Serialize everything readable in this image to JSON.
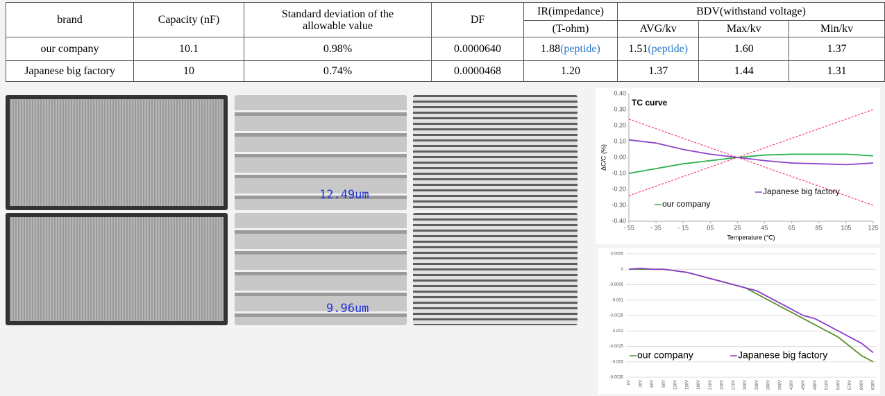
{
  "table": {
    "header": [
      "brand",
      "Capacity (nF)",
      "Standard deviation of the allowable value",
      "DF",
      "IR(impedance)",
      "BDV(withstand voltage)"
    ],
    "subheader": [
      "(T-ohm)",
      "AVG/kv",
      "Max/kv",
      "Min/kv"
    ],
    "rows": [
      [
        {
          "text": "our company"
        },
        {
          "text": "10.1"
        },
        {
          "text": "0.98%"
        },
        {
          "text": "0.0000640"
        },
        {
          "text": "1.88",
          "note": "(peptide)"
        },
        {
          "text": "1.51",
          "note": "(peptide)"
        },
        {
          "text": "1.60"
        },
        {
          "text": "1.37"
        }
      ],
      [
        {
          "text": "Japanese big factory"
        },
        {
          "text": "10"
        },
        {
          "text": "0.74%"
        },
        {
          "text": "0.0000468"
        },
        {
          "text": "1.20"
        },
        {
          "text": "1.37"
        },
        {
          "text": "1.44"
        },
        {
          "text": "1.31"
        }
      ]
    ]
  },
  "photos": {
    "sem_top": "12.49um",
    "sem_bottom": "9.96um"
  },
  "chart_data": [
    {
      "type": "line",
      "title": "TC curve",
      "x_label": "Temperature (℃)",
      "y_label": "ΔC/C (%)",
      "x": [
        -55,
        -35,
        -15,
        5,
        25,
        45,
        65,
        85,
        105,
        125
      ],
      "series": [
        {
          "name": "our company",
          "color": "#2bb04f",
          "values": [
            -0.1,
            -0.07,
            -0.04,
            -0.02,
            0,
            0.015,
            0.02,
            0.02,
            0.02,
            0.01
          ]
        },
        {
          "name": "Japanese big factory",
          "color": "#8e44c8",
          "values": [
            0.11,
            0.09,
            0.05,
            0.02,
            0,
            -0.02,
            -0.035,
            -0.04,
            -0.045,
            -0.035
          ]
        }
      ],
      "reference_lines": [
        {
          "color": "#ff3b6b",
          "x": [
            -55,
            125
          ],
          "values": [
            0.24,
            -0.3
          ]
        },
        {
          "color": "#ff3b6b",
          "x": [
            -55,
            125
          ],
          "values": [
            -0.24,
            0.3
          ]
        }
      ],
      "xlim": [
        -55,
        125
      ],
      "ylim": [
        -0.4,
        0.4
      ],
      "xticks": [
        {
          "value": -55,
          "label": "- 55"
        },
        {
          "value": -35,
          "label": "- 35"
        },
        {
          "value": -15,
          "label": "- 15"
        },
        {
          "value": 5,
          "label": "05"
        },
        25,
        45,
        65,
        85,
        105,
        125
      ],
      "yticks": [
        {
          "value": 0.4,
          "label": "0.40"
        },
        {
          "value": 0.3,
          "label": "0.30"
        },
        {
          "value": 0.2,
          "label": "0.20"
        },
        {
          "value": 0.1,
          "label": "0.10"
        },
        {
          "value": 0,
          "label": "0.00"
        },
        {
          "value": -0.1,
          "label": "-0.10"
        },
        {
          "value": -0.2,
          "label": "-0.20"
        },
        {
          "value": -0.3,
          "label": "-0.30"
        },
        {
          "value": -0.4,
          "label": "-0.40"
        }
      ],
      "grid": false
    },
    {
      "type": "line",
      "categories": [
        "0V",
        "30V",
        "60V",
        "90V",
        "120V",
        "150V",
        "180V",
        "210V",
        "240V",
        "270V",
        "300V",
        "330V",
        "360V",
        "390V",
        "420V",
        "450V",
        "480V",
        "510V",
        "540V",
        "570V",
        "600V",
        "630V"
      ],
      "series": [
        {
          "name": "our company",
          "color": "#5b8f2b",
          "values": [
            0,
            0,
            0,
            0,
            -5e-05,
            -0.0001,
            -0.0002,
            -0.0003,
            -0.0004,
            -0.0005,
            -0.0006,
            -0.0008,
            -0.001,
            -0.0012,
            -0.0014,
            -0.0016,
            -0.0018,
            -0.002,
            -0.0022,
            -0.0025,
            -0.0028,
            -0.003
          ]
        },
        {
          "name": "Japanese big factory",
          "color": "#8a3cc8",
          "values": [
            0,
            3e-05,
            0,
            0,
            -5e-05,
            -0.0001,
            -0.0002,
            -0.0003,
            -0.0004,
            -0.0005,
            -0.0006,
            -0.0007,
            -0.0009,
            -0.0011,
            -0.0013,
            -0.0015,
            -0.0016,
            -0.0018,
            -0.002,
            -0.0022,
            -0.0024,
            -0.0027
          ]
        }
      ],
      "ylim": [
        -0.0035,
        0.0005
      ],
      "yticks": [
        0.0005,
        0,
        -0.0005,
        -0.001,
        -0.0015,
        -0.002,
        -0.0025,
        -0.003,
        -0.0035
      ],
      "grid": true
    }
  ]
}
